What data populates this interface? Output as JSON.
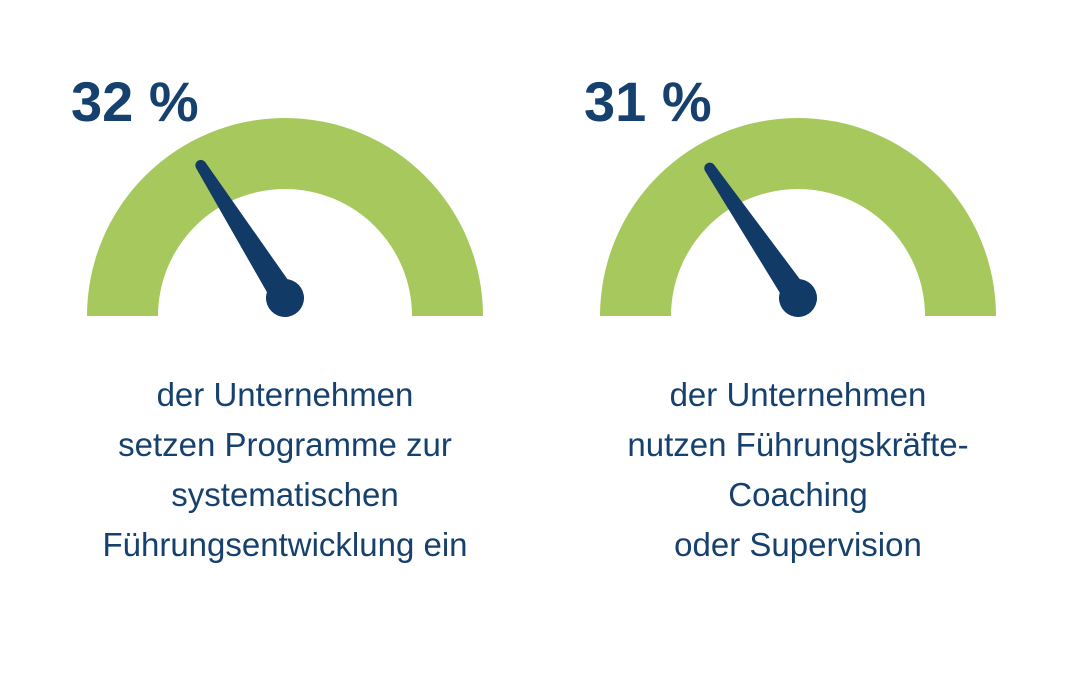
{
  "colors": {
    "background": "#ffffff",
    "arc_green": "#a6c85c",
    "navy": "#16406d",
    "needle_navy": "#123a66"
  },
  "chart_data": {
    "type": "gauge",
    "unit": "%",
    "range": [
      0,
      100
    ],
    "arc_color": "#a6c85c",
    "needle_color": "#123a66",
    "gauges": [
      {
        "value": 32,
        "label": "32 %",
        "caption_lines": [
          "der Unternehmen",
          "setzen Programme zur",
          "systematischen",
          "Führungsentwicklung ein"
        ],
        "caption": "der Unternehmen setzen Programme zur systematischen Führungsentwicklung ein"
      },
      {
        "value": 31,
        "label": "31 %",
        "caption_lines": [
          "der Unternehmen",
          "nutzen Führungskräfte-",
          "Coaching",
          "oder Supervision"
        ],
        "caption": "der Unternehmen nutzen Führungskräfte-Coaching oder Supervision"
      }
    ]
  }
}
